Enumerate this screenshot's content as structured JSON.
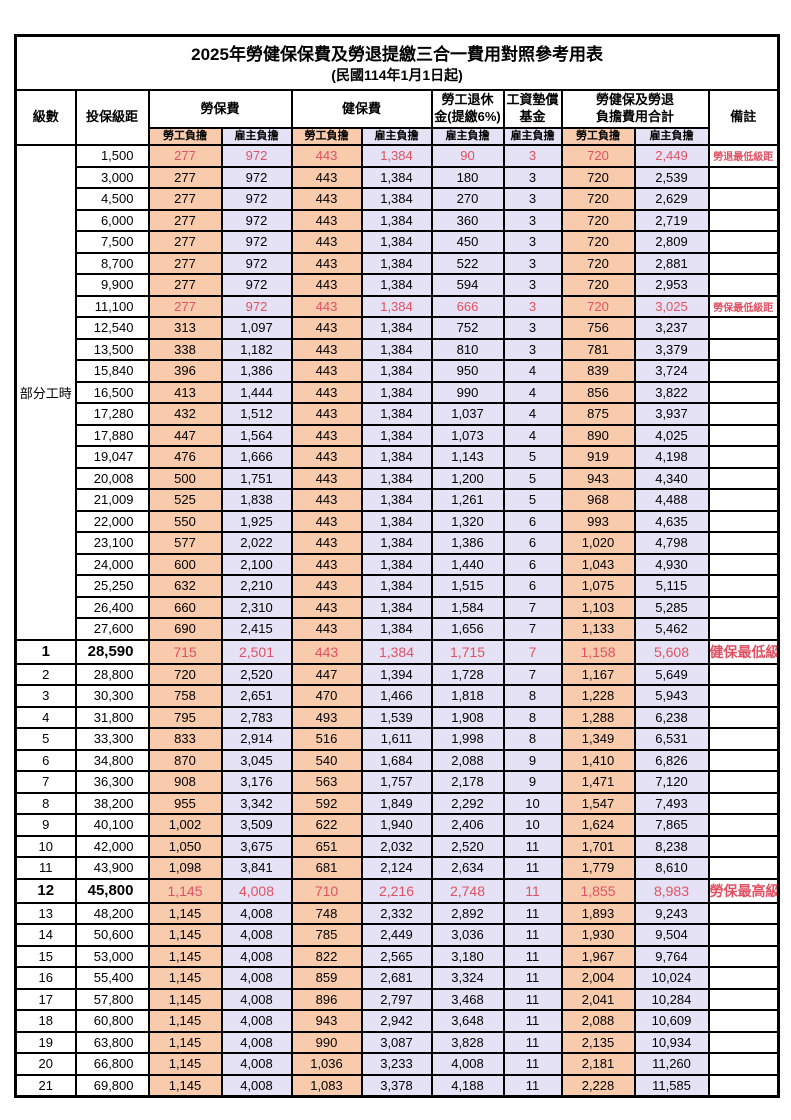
{
  "title": "2025年勞健保保費及勞退提繳三合一費用對照參考用表",
  "subtitle": "(民國114年1月1日起)",
  "columns": {
    "level": "級數",
    "bracket": "投保級距",
    "labor_fee": "勞保費",
    "health_fee": "健保費",
    "pension_line1": "勞工退休",
    "pension_line2": "金(提繳6%)",
    "wage_fund_line1": "工資墊償",
    "wage_fund_line2": "基金",
    "total_line1": "勞健保及勞退",
    "total_line2": "負擔費用合計",
    "remark": "備註",
    "worker_share": "勞工負擔",
    "employer_share": "雇主負擔"
  },
  "part_time_label": "部分工時",
  "part_time_rowspan": 23,
  "colors": {
    "worker_bg": "#F8CBAD",
    "employer_bg": "#E4E2F4",
    "highlight_red": "#E05263"
  },
  "rows": [
    {
      "level": "",
      "bracket": "1,500",
      "labor_worker": "277",
      "labor_employer": "972",
      "health_worker": "443",
      "health_employer": "1,384",
      "pension_employer": "90",
      "wage_fund_employer": "3",
      "total_worker": "720",
      "total_employer": "2,449",
      "remark": "勞退最低級距",
      "red": true
    },
    {
      "level": "",
      "bracket": "3,000",
      "labor_worker": "277",
      "labor_employer": "972",
      "health_worker": "443",
      "health_employer": "1,384",
      "pension_employer": "180",
      "wage_fund_employer": "3",
      "total_worker": "720",
      "total_employer": "2,539",
      "remark": ""
    },
    {
      "level": "",
      "bracket": "4,500",
      "labor_worker": "277",
      "labor_employer": "972",
      "health_worker": "443",
      "health_employer": "1,384",
      "pension_employer": "270",
      "wage_fund_employer": "3",
      "total_worker": "720",
      "total_employer": "2,629",
      "remark": ""
    },
    {
      "level": "",
      "bracket": "6,000",
      "labor_worker": "277",
      "labor_employer": "972",
      "health_worker": "443",
      "health_employer": "1,384",
      "pension_employer": "360",
      "wage_fund_employer": "3",
      "total_worker": "720",
      "total_employer": "2,719",
      "remark": ""
    },
    {
      "level": "",
      "bracket": "7,500",
      "labor_worker": "277",
      "labor_employer": "972",
      "health_worker": "443",
      "health_employer": "1,384",
      "pension_employer": "450",
      "wage_fund_employer": "3",
      "total_worker": "720",
      "total_employer": "2,809",
      "remark": ""
    },
    {
      "level": "",
      "bracket": "8,700",
      "labor_worker": "277",
      "labor_employer": "972",
      "health_worker": "443",
      "health_employer": "1,384",
      "pension_employer": "522",
      "wage_fund_employer": "3",
      "total_worker": "720",
      "total_employer": "2,881",
      "remark": ""
    },
    {
      "level": "",
      "bracket": "9,900",
      "labor_worker": "277",
      "labor_employer": "972",
      "health_worker": "443",
      "health_employer": "1,384",
      "pension_employer": "594",
      "wage_fund_employer": "3",
      "total_worker": "720",
      "total_employer": "2,953",
      "remark": ""
    },
    {
      "level": "",
      "bracket": "11,100",
      "labor_worker": "277",
      "labor_employer": "972",
      "health_worker": "443",
      "health_employer": "1,384",
      "pension_employer": "666",
      "wage_fund_employer": "3",
      "total_worker": "720",
      "total_employer": "3,025",
      "remark": "勞保最低級距",
      "red": true
    },
    {
      "level": "",
      "bracket": "12,540",
      "labor_worker": "313",
      "labor_employer": "1,097",
      "health_worker": "443",
      "health_employer": "1,384",
      "pension_employer": "752",
      "wage_fund_employer": "3",
      "total_worker": "756",
      "total_employer": "3,237",
      "remark": ""
    },
    {
      "level": "",
      "bracket": "13,500",
      "labor_worker": "338",
      "labor_employer": "1,182",
      "health_worker": "443",
      "health_employer": "1,384",
      "pension_employer": "810",
      "wage_fund_employer": "3",
      "total_worker": "781",
      "total_employer": "3,379",
      "remark": ""
    },
    {
      "level": "",
      "bracket": "15,840",
      "labor_worker": "396",
      "labor_employer": "1,386",
      "health_worker": "443",
      "health_employer": "1,384",
      "pension_employer": "950",
      "wage_fund_employer": "4",
      "total_worker": "839",
      "total_employer": "3,724",
      "remark": ""
    },
    {
      "level": "",
      "bracket": "16,500",
      "labor_worker": "413",
      "labor_employer": "1,444",
      "health_worker": "443",
      "health_employer": "1,384",
      "pension_employer": "990",
      "wage_fund_employer": "4",
      "total_worker": "856",
      "total_employer": "3,822",
      "remark": ""
    },
    {
      "level": "",
      "bracket": "17,280",
      "labor_worker": "432",
      "labor_employer": "1,512",
      "health_worker": "443",
      "health_employer": "1,384",
      "pension_employer": "1,037",
      "wage_fund_employer": "4",
      "total_worker": "875",
      "total_employer": "3,937",
      "remark": ""
    },
    {
      "level": "",
      "bracket": "17,880",
      "labor_worker": "447",
      "labor_employer": "1,564",
      "health_worker": "443",
      "health_employer": "1,384",
      "pension_employer": "1,073",
      "wage_fund_employer": "4",
      "total_worker": "890",
      "total_employer": "4,025",
      "remark": ""
    },
    {
      "level": "",
      "bracket": "19,047",
      "labor_worker": "476",
      "labor_employer": "1,666",
      "health_worker": "443",
      "health_employer": "1,384",
      "pension_employer": "1,143",
      "wage_fund_employer": "5",
      "total_worker": "919",
      "total_employer": "4,198",
      "remark": ""
    },
    {
      "level": "",
      "bracket": "20,008",
      "labor_worker": "500",
      "labor_employer": "1,751",
      "health_worker": "443",
      "health_employer": "1,384",
      "pension_employer": "1,200",
      "wage_fund_employer": "5",
      "total_worker": "943",
      "total_employer": "4,340",
      "remark": ""
    },
    {
      "level": "",
      "bracket": "21,009",
      "labor_worker": "525",
      "labor_employer": "1,838",
      "health_worker": "443",
      "health_employer": "1,384",
      "pension_employer": "1,261",
      "wage_fund_employer": "5",
      "total_worker": "968",
      "total_employer": "4,488",
      "remark": ""
    },
    {
      "level": "",
      "bracket": "22,000",
      "labor_worker": "550",
      "labor_employer": "1,925",
      "health_worker": "443",
      "health_employer": "1,384",
      "pension_employer": "1,320",
      "wage_fund_employer": "6",
      "total_worker": "993",
      "total_employer": "4,635",
      "remark": ""
    },
    {
      "level": "",
      "bracket": "23,100",
      "labor_worker": "577",
      "labor_employer": "2,022",
      "health_worker": "443",
      "health_employer": "1,384",
      "pension_employer": "1,386",
      "wage_fund_employer": "6",
      "total_worker": "1,020",
      "total_employer": "4,798",
      "remark": ""
    },
    {
      "level": "",
      "bracket": "24,000",
      "labor_worker": "600",
      "labor_employer": "2,100",
      "health_worker": "443",
      "health_employer": "1,384",
      "pension_employer": "1,440",
      "wage_fund_employer": "6",
      "total_worker": "1,043",
      "total_employer": "4,930",
      "remark": ""
    },
    {
      "level": "",
      "bracket": "25,250",
      "labor_worker": "632",
      "labor_employer": "2,210",
      "health_worker": "443",
      "health_employer": "1,384",
      "pension_employer": "1,515",
      "wage_fund_employer": "6",
      "total_worker": "1,075",
      "total_employer": "5,115",
      "remark": ""
    },
    {
      "level": "",
      "bracket": "26,400",
      "labor_worker": "660",
      "labor_employer": "2,310",
      "health_worker": "443",
      "health_employer": "1,384",
      "pension_employer": "1,584",
      "wage_fund_employer": "7",
      "total_worker": "1,103",
      "total_employer": "5,285",
      "remark": ""
    },
    {
      "level": "",
      "bracket": "27,600",
      "labor_worker": "690",
      "labor_employer": "2,415",
      "health_worker": "443",
      "health_employer": "1,384",
      "pension_employer": "1,656",
      "wage_fund_employer": "7",
      "total_worker": "1,133",
      "total_employer": "5,462",
      "remark": ""
    },
    {
      "level": "1",
      "bracket": "28,590",
      "labor_worker": "715",
      "labor_employer": "2,501",
      "health_worker": "443",
      "health_employer": "1,384",
      "pension_employer": "1,715",
      "wage_fund_employer": "7",
      "total_worker": "1,158",
      "total_employer": "5,608",
      "remark": "健保最低級距",
      "red": true,
      "emph": true
    },
    {
      "level": "2",
      "bracket": "28,800",
      "labor_worker": "720",
      "labor_employer": "2,520",
      "health_worker": "447",
      "health_employer": "1,394",
      "pension_employer": "1,728",
      "wage_fund_employer": "7",
      "total_worker": "1,167",
      "total_employer": "5,649",
      "remark": ""
    },
    {
      "level": "3",
      "bracket": "30,300",
      "labor_worker": "758",
      "labor_employer": "2,651",
      "health_worker": "470",
      "health_employer": "1,466",
      "pension_employer": "1,818",
      "wage_fund_employer": "8",
      "total_worker": "1,228",
      "total_employer": "5,943",
      "remark": ""
    },
    {
      "level": "4",
      "bracket": "31,800",
      "labor_worker": "795",
      "labor_employer": "2,783",
      "health_worker": "493",
      "health_employer": "1,539",
      "pension_employer": "1,908",
      "wage_fund_employer": "8",
      "total_worker": "1,288",
      "total_employer": "6,238",
      "remark": ""
    },
    {
      "level": "5",
      "bracket": "33,300",
      "labor_worker": "833",
      "labor_employer": "2,914",
      "health_worker": "516",
      "health_employer": "1,611",
      "pension_employer": "1,998",
      "wage_fund_employer": "8",
      "total_worker": "1,349",
      "total_employer": "6,531",
      "remark": ""
    },
    {
      "level": "6",
      "bracket": "34,800",
      "labor_worker": "870",
      "labor_employer": "3,045",
      "health_worker": "540",
      "health_employer": "1,684",
      "pension_employer": "2,088",
      "wage_fund_employer": "9",
      "total_worker": "1,410",
      "total_employer": "6,826",
      "remark": ""
    },
    {
      "level": "7",
      "bracket": "36,300",
      "labor_worker": "908",
      "labor_employer": "3,176",
      "health_worker": "563",
      "health_employer": "1,757",
      "pension_employer": "2,178",
      "wage_fund_employer": "9",
      "total_worker": "1,471",
      "total_employer": "7,120",
      "remark": ""
    },
    {
      "level": "8",
      "bracket": "38,200",
      "labor_worker": "955",
      "labor_employer": "3,342",
      "health_worker": "592",
      "health_employer": "1,849",
      "pension_employer": "2,292",
      "wage_fund_employer": "10",
      "total_worker": "1,547",
      "total_employer": "7,493",
      "remark": ""
    },
    {
      "level": "9",
      "bracket": "40,100",
      "labor_worker": "1,002",
      "labor_employer": "3,509",
      "health_worker": "622",
      "health_employer": "1,940",
      "pension_employer": "2,406",
      "wage_fund_employer": "10",
      "total_worker": "1,624",
      "total_employer": "7,865",
      "remark": ""
    },
    {
      "level": "10",
      "bracket": "42,000",
      "labor_worker": "1,050",
      "labor_employer": "3,675",
      "health_worker": "651",
      "health_employer": "2,032",
      "pension_employer": "2,520",
      "wage_fund_employer": "11",
      "total_worker": "1,701",
      "total_employer": "8,238",
      "remark": ""
    },
    {
      "level": "11",
      "bracket": "43,900",
      "labor_worker": "1,098",
      "labor_employer": "3,841",
      "health_worker": "681",
      "health_employer": "2,124",
      "pension_employer": "2,634",
      "wage_fund_employer": "11",
      "total_worker": "1,779",
      "total_employer": "8,610",
      "remark": ""
    },
    {
      "level": "12",
      "bracket": "45,800",
      "labor_worker": "1,145",
      "labor_employer": "4,008",
      "health_worker": "710",
      "health_employer": "2,216",
      "pension_employer": "2,748",
      "wage_fund_employer": "11",
      "total_worker": "1,855",
      "total_employer": "8,983",
      "remark": "勞保最高級距",
      "red": true,
      "emph": true
    },
    {
      "level": "13",
      "bracket": "48,200",
      "labor_worker": "1,145",
      "labor_employer": "4,008",
      "health_worker": "748",
      "health_employer": "2,332",
      "pension_employer": "2,892",
      "wage_fund_employer": "11",
      "total_worker": "1,893",
      "total_employer": "9,243",
      "remark": ""
    },
    {
      "level": "14",
      "bracket": "50,600",
      "labor_worker": "1,145",
      "labor_employer": "4,008",
      "health_worker": "785",
      "health_employer": "2,449",
      "pension_employer": "3,036",
      "wage_fund_employer": "11",
      "total_worker": "1,930",
      "total_employer": "9,504",
      "remark": ""
    },
    {
      "level": "15",
      "bracket": "53,000",
      "labor_worker": "1,145",
      "labor_employer": "4,008",
      "health_worker": "822",
      "health_employer": "2,565",
      "pension_employer": "3,180",
      "wage_fund_employer": "11",
      "total_worker": "1,967",
      "total_employer": "9,764",
      "remark": ""
    },
    {
      "level": "16",
      "bracket": "55,400",
      "labor_worker": "1,145",
      "labor_employer": "4,008",
      "health_worker": "859",
      "health_employer": "2,681",
      "pension_employer": "3,324",
      "wage_fund_employer": "11",
      "total_worker": "2,004",
      "total_employer": "10,024",
      "remark": ""
    },
    {
      "level": "17",
      "bracket": "57,800",
      "labor_worker": "1,145",
      "labor_employer": "4,008",
      "health_worker": "896",
      "health_employer": "2,797",
      "pension_employer": "3,468",
      "wage_fund_employer": "11",
      "total_worker": "2,041",
      "total_employer": "10,284",
      "remark": ""
    },
    {
      "level": "18",
      "bracket": "60,800",
      "labor_worker": "1,145",
      "labor_employer": "4,008",
      "health_worker": "943",
      "health_employer": "2,942",
      "pension_employer": "3,648",
      "wage_fund_employer": "11",
      "total_worker": "2,088",
      "total_employer": "10,609",
      "remark": ""
    },
    {
      "level": "19",
      "bracket": "63,800",
      "labor_worker": "1,145",
      "labor_employer": "4,008",
      "health_worker": "990",
      "health_employer": "3,087",
      "pension_employer": "3,828",
      "wage_fund_employer": "11",
      "total_worker": "2,135",
      "total_employer": "10,934",
      "remark": ""
    },
    {
      "level": "20",
      "bracket": "66,800",
      "labor_worker": "1,145",
      "labor_employer": "4,008",
      "health_worker": "1,036",
      "health_employer": "3,233",
      "pension_employer": "4,008",
      "wage_fund_employer": "11",
      "total_worker": "2,181",
      "total_employer": "11,260",
      "remark": ""
    },
    {
      "level": "21",
      "bracket": "69,800",
      "labor_worker": "1,145",
      "labor_employer": "4,008",
      "health_worker": "1,083",
      "health_employer": "3,378",
      "pension_employer": "4,188",
      "wage_fund_employer": "11",
      "total_worker": "2,228",
      "total_employer": "11,585",
      "remark": ""
    }
  ]
}
